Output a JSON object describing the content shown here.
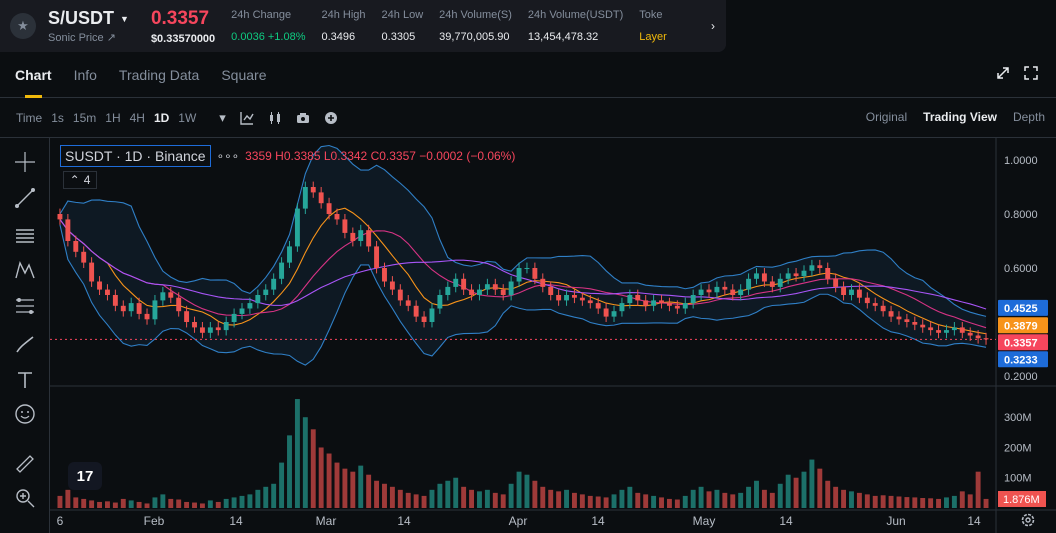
{
  "ticker": {
    "pair": "S/USDT",
    "sub_label": "Sonic Price ↗",
    "last_price": "0.3357",
    "last_price_usd": "$0.33570000",
    "stats": [
      {
        "label": "24h Change",
        "value": "0.0036 +1.08%",
        "color": "green"
      },
      {
        "label": "24h High",
        "value": "0.3496",
        "color": ""
      },
      {
        "label": "24h Low",
        "value": "0.3305",
        "color": ""
      },
      {
        "label": "24h Volume(S)",
        "value": "39,770,005.90",
        "color": ""
      },
      {
        "label": "24h Volume(USDT)",
        "value": "13,454,478.32",
        "color": ""
      },
      {
        "label": "Toke",
        "value": "Layer",
        "color": "yellow"
      }
    ]
  },
  "tabs": [
    "Chart",
    "Info",
    "Trading Data",
    "Square"
  ],
  "toolbar": {
    "time_label": "Time",
    "intervals": [
      "1s",
      "15m",
      "1H",
      "4H",
      "1D",
      "1W"
    ],
    "active_interval": "1D",
    "views": [
      "Original",
      "Trading View",
      "Depth"
    ],
    "active_view": "Trading View"
  },
  "legend": {
    "symbol": "SUSDT · 1D · Binance",
    "ohlc": "3359 H0.3385 L0.3342 C0.3357 −0.0002 (−0.06%)",
    "indicator_count": "4"
  },
  "tv_logo": "17",
  "colors": {
    "up": "#26a69a",
    "down": "#ef5350",
    "bb": "#2f7fc6",
    "ma_orange": "#f7931a",
    "ma_pink": "#d63384",
    "ma_purple": "#a855f7"
  },
  "chart_data": {
    "type": "candlestick",
    "price_axis_ticks": [
      "1.0000",
      "0.8000",
      "0.6000",
      "0.2000"
    ],
    "price_labels": [
      {
        "value": "0.4525",
        "color": "#1e6cd9"
      },
      {
        "value": "0.3879",
        "color": "#f7931a"
      },
      {
        "value": "0.3357",
        "color": "#f6465d"
      },
      {
        "value": "0.3233",
        "color": "#1e6cd9"
      }
    ],
    "volume_axis_ticks": [
      "300M",
      "200M",
      "100M"
    ],
    "volume_label": "1.876M",
    "time_ticks": [
      "6",
      "Feb",
      "14",
      "Mar",
      "14",
      "Apr",
      "14",
      "May",
      "14",
      "Jun",
      "14"
    ],
    "closes": [
      0.78,
      0.7,
      0.66,
      0.62,
      0.55,
      0.52,
      0.5,
      0.46,
      0.44,
      0.47,
      0.43,
      0.41,
      0.48,
      0.51,
      0.49,
      0.44,
      0.4,
      0.38,
      0.36,
      0.38,
      0.37,
      0.4,
      0.43,
      0.45,
      0.47,
      0.5,
      0.52,
      0.56,
      0.62,
      0.68,
      0.82,
      0.9,
      0.88,
      0.84,
      0.8,
      0.78,
      0.73,
      0.7,
      0.74,
      0.68,
      0.6,
      0.55,
      0.52,
      0.48,
      0.46,
      0.42,
      0.4,
      0.45,
      0.5,
      0.53,
      0.56,
      0.52,
      0.5,
      0.52,
      0.54,
      0.52,
      0.5,
      0.55,
      0.6,
      0.6,
      0.56,
      0.53,
      0.5,
      0.48,
      0.5,
      0.49,
      0.48,
      0.47,
      0.45,
      0.42,
      0.44,
      0.47,
      0.5,
      0.48,
      0.46,
      0.48,
      0.47,
      0.46,
      0.45,
      0.47,
      0.5,
      0.52,
      0.51,
      0.53,
      0.52,
      0.5,
      0.52,
      0.56,
      0.58,
      0.55,
      0.53,
      0.56,
      0.58,
      0.57,
      0.59,
      0.61,
      0.6,
      0.56,
      0.53,
      0.5,
      0.52,
      0.49,
      0.47,
      0.46,
      0.44,
      0.42,
      0.41,
      0.4,
      0.39,
      0.38,
      0.37,
      0.36,
      0.37,
      0.38,
      0.36,
      0.35,
      0.34,
      0.3357
    ],
    "volumes_m": [
      40,
      60,
      35,
      30,
      25,
      20,
      22,
      18,
      30,
      25,
      20,
      15,
      35,
      45,
      30,
      28,
      20,
      18,
      15,
      25,
      20,
      30,
      35,
      40,
      45,
      60,
      70,
      80,
      150,
      240,
      360,
      300,
      260,
      200,
      180,
      150,
      130,
      120,
      140,
      110,
      90,
      80,
      70,
      60,
      50,
      45,
      40,
      60,
      80,
      90,
      100,
      70,
      60,
      55,
      60,
      50,
      45,
      80,
      120,
      110,
      90,
      70,
      60,
      55,
      60,
      50,
      45,
      40,
      38,
      35,
      45,
      60,
      70,
      50,
      45,
      40,
      35,
      30,
      28,
      40,
      60,
      70,
      55,
      60,
      50,
      45,
      50,
      70,
      90,
      60,
      50,
      80,
      110,
      100,
      120,
      160,
      130,
      90,
      70,
      60,
      55,
      50,
      45,
      40,
      42,
      40,
      38,
      36,
      35,
      33,
      32,
      30,
      35,
      40,
      55,
      45,
      120,
      30
    ]
  }
}
